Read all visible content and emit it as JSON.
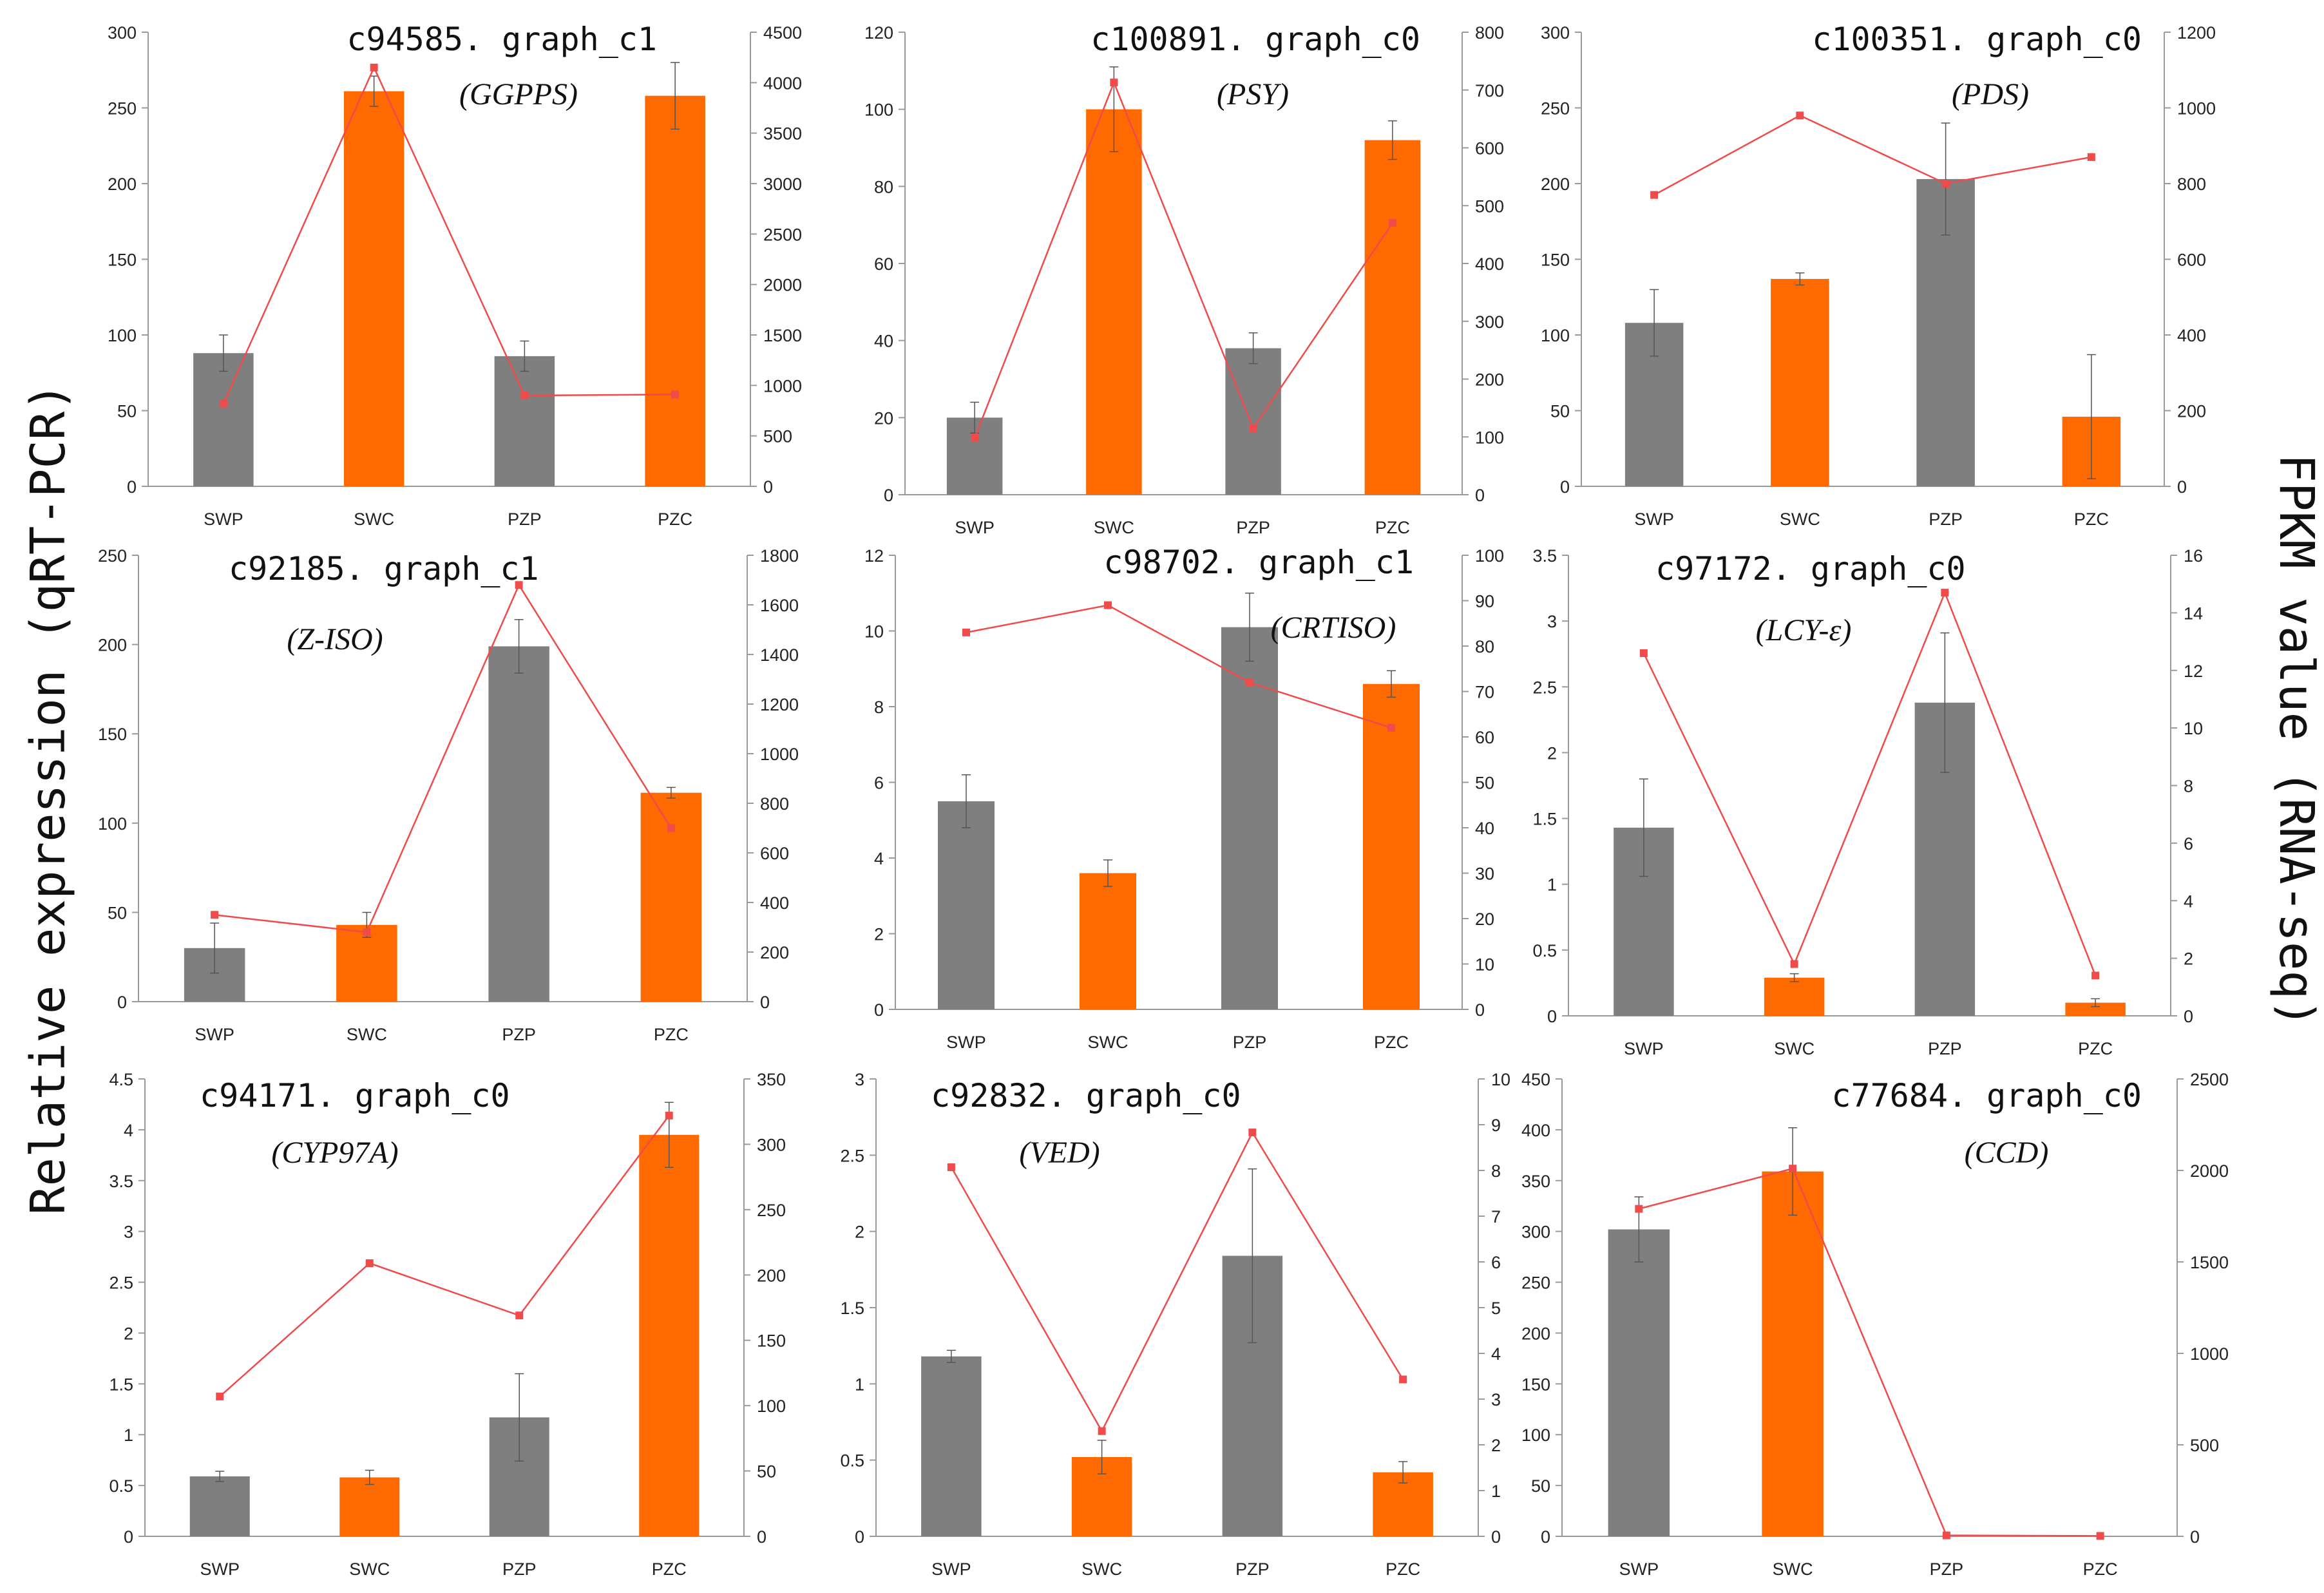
{
  "figure": {
    "left_axis_label": "Relative expression (qRT-PCR)",
    "right_axis_label": "FPKM value (RNA-seq)",
    "colors": {
      "gray": "#7f7f7f",
      "orange": "#ff6a00",
      "line": "#ef4b4b",
      "axis": "#9a9a9a"
    }
  },
  "chart_data": [
    {
      "type": "bar",
      "title": "c94585. graph_c1",
      "subtitle": "(GGPPS)",
      "categories": [
        "SWP",
        "SWC",
        "PZP",
        "PZC"
      ],
      "series": [
        {
          "name": "qRT-PCR",
          "axis": "left",
          "values": [
            88,
            261,
            86,
            258
          ],
          "errors": [
            12,
            10,
            10,
            22
          ]
        },
        {
          "name": "RNA-seq FPKM",
          "axis": "right",
          "type": "line",
          "values": [
            820,
            4150,
            900,
            910
          ]
        }
      ],
      "left_ylim": [
        0,
        300
      ],
      "left_ticks": [
        0,
        50,
        100,
        150,
        200,
        250,
        300
      ],
      "right_ylim": [
        0,
        4500
      ],
      "right_ticks": [
        0,
        500,
        1000,
        1500,
        2000,
        2500,
        3000,
        3500,
        4000,
        4500
      ]
    },
    {
      "type": "bar",
      "title": "c100891. graph_c0",
      "subtitle": "(PSY)",
      "categories": [
        "SWP",
        "SWC",
        "PZP",
        "PZC"
      ],
      "series": [
        {
          "name": "qRT-PCR",
          "axis": "left",
          "values": [
            20,
            100,
            38,
            92
          ],
          "errors": [
            4,
            11,
            4,
            5
          ]
        },
        {
          "name": "RNA-seq FPKM",
          "axis": "right",
          "type": "line",
          "values": [
            98,
            713,
            115,
            470
          ]
        }
      ],
      "left_ylim": [
        0,
        120
      ],
      "left_ticks": [
        0,
        20,
        40,
        60,
        80,
        100,
        120
      ],
      "right_ylim": [
        0,
        800
      ],
      "right_ticks": [
        0,
        100,
        200,
        300,
        400,
        500,
        600,
        700,
        800
      ]
    },
    {
      "type": "bar",
      "title": "c100351. graph_c0",
      "subtitle": "(PDS)",
      "categories": [
        "SWP",
        "SWC",
        "PZP",
        "PZC"
      ],
      "series": [
        {
          "name": "qRT-PCR",
          "axis": "left",
          "values": [
            108,
            137,
            203,
            46
          ],
          "errors": [
            22,
            4,
            37,
            41
          ]
        },
        {
          "name": "RNA-seq FPKM",
          "axis": "right",
          "type": "line",
          "values": [
            770,
            980,
            800,
            870
          ]
        }
      ],
      "left_ylim": [
        0,
        300
      ],
      "left_ticks": [
        0,
        50,
        100,
        150,
        200,
        250,
        300
      ],
      "right_ylim": [
        0,
        1200
      ],
      "right_ticks": [
        0,
        200,
        400,
        600,
        800,
        1000,
        1200
      ]
    },
    {
      "type": "bar",
      "title": "c92185. graph_c1",
      "subtitle": "(Z-ISO)",
      "categories": [
        "SWP",
        "SWC",
        "PZP",
        "PZC"
      ],
      "series": [
        {
          "name": "qRT-PCR",
          "axis": "left",
          "values": [
            30,
            43,
            199,
            117
          ],
          "errors": [
            14,
            7,
            15,
            3
          ]
        },
        {
          "name": "RNA-seq FPKM",
          "axis": "right",
          "type": "line",
          "values": [
            350,
            280,
            1680,
            700
          ]
        }
      ],
      "left_ylim": [
        0,
        250
      ],
      "left_ticks": [
        0,
        50,
        100,
        150,
        200,
        250
      ],
      "right_ylim": [
        0,
        1800
      ],
      "right_ticks": [
        0,
        200,
        400,
        600,
        800,
        1000,
        1200,
        1400,
        1600,
        1800
      ]
    },
    {
      "type": "bar",
      "title": "c98702. graph_c1",
      "subtitle": "(CRTISO)",
      "categories": [
        "SWP",
        "SWC",
        "PZP",
        "PZC"
      ],
      "series": [
        {
          "name": "qRT-PCR",
          "axis": "left",
          "values": [
            5.5,
            3.6,
            10.1,
            8.6
          ],
          "errors": [
            0.7,
            0.35,
            0.9,
            0.35
          ]
        },
        {
          "name": "RNA-seq FPKM",
          "axis": "right",
          "type": "line",
          "values": [
            83,
            89,
            72,
            62
          ]
        }
      ],
      "left_ylim": [
        0,
        12
      ],
      "left_ticks": [
        0,
        2,
        4,
        6,
        8,
        10,
        12
      ],
      "right_ylim": [
        0,
        100
      ],
      "right_ticks": [
        0,
        10,
        20,
        30,
        40,
        50,
        60,
        70,
        80,
        90,
        100
      ]
    },
    {
      "type": "bar",
      "title": "c97172. graph_c0",
      "subtitle": "(LCY-ε)",
      "categories": [
        "SWP",
        "SWC",
        "PZP",
        "PZC"
      ],
      "series": [
        {
          "name": "qRT-PCR",
          "axis": "left",
          "values": [
            1.43,
            0.29,
            2.38,
            0.1
          ],
          "errors": [
            0.37,
            0.03,
            0.53,
            0.03
          ]
        },
        {
          "name": "RNA-seq FPKM",
          "axis": "right",
          "type": "line",
          "values": [
            12.6,
            1.8,
            14.7,
            1.4
          ]
        }
      ],
      "left_ylim": [
        0,
        3.5
      ],
      "left_ticks": [
        0,
        0.5,
        1,
        1.5,
        2,
        2.5,
        3,
        3.5
      ],
      "right_ylim": [
        0,
        16
      ],
      "right_ticks": [
        0,
        2,
        4,
        6,
        8,
        10,
        12,
        14,
        16
      ]
    },
    {
      "type": "bar",
      "title": "c94171. graph_c0",
      "subtitle": "(CYP97A)",
      "categories": [
        "SWP",
        "SWC",
        "PZP",
        "PZC"
      ],
      "series": [
        {
          "name": "qRT-PCR",
          "axis": "left",
          "values": [
            0.59,
            0.58,
            1.17,
            3.95
          ],
          "errors": [
            0.05,
            0.07,
            0.43,
            0.32
          ]
        },
        {
          "name": "RNA-seq FPKM",
          "axis": "right",
          "type": "line",
          "values": [
            107,
            209,
            169,
            322
          ]
        }
      ],
      "left_ylim": [
        0,
        4.5
      ],
      "left_ticks": [
        0,
        0.5,
        1,
        1.5,
        2,
        2.5,
        3,
        3.5,
        4,
        4.5
      ],
      "right_ylim": [
        0,
        350
      ],
      "right_ticks": [
        0,
        50,
        100,
        150,
        200,
        250,
        300,
        350
      ]
    },
    {
      "type": "bar",
      "title": "c92832. graph_c0",
      "subtitle": "(VED)",
      "categories": [
        "SWP",
        "SWC",
        "PZP",
        "PZC"
      ],
      "series": [
        {
          "name": "qRT-PCR",
          "axis": "left",
          "values": [
            1.18,
            0.52,
            1.84,
            0.42
          ],
          "errors": [
            0.04,
            0.11,
            0.57,
            0.07
          ]
        },
        {
          "name": "RNA-seq FPKM",
          "axis": "right",
          "type": "line",
          "values": [
            8.07,
            2.3,
            8.83,
            3.43
          ]
        }
      ],
      "left_ylim": [
        0,
        3
      ],
      "left_ticks": [
        0,
        0.5,
        1,
        1.5,
        2,
        2.5,
        3
      ],
      "right_ylim": [
        0,
        10
      ],
      "right_ticks": [
        0,
        1,
        2,
        3,
        4,
        5,
        6,
        7,
        8,
        9,
        10
      ]
    },
    {
      "type": "bar",
      "title": "c77684. graph_c0",
      "subtitle": "(CCD)",
      "categories": [
        "SWP",
        "SWC",
        "PZP",
        "PZC"
      ],
      "series": [
        {
          "name": "qRT-PCR",
          "axis": "left",
          "values": [
            302,
            359,
            0,
            0
          ],
          "errors": [
            32,
            43,
            0,
            0
          ]
        },
        {
          "name": "RNA-seq FPKM",
          "axis": "right",
          "type": "line",
          "values": [
            1790,
            2010,
            5,
            2
          ]
        }
      ],
      "left_ylim": [
        0,
        450
      ],
      "left_ticks": [
        0,
        50,
        100,
        150,
        200,
        250,
        300,
        350,
        400,
        450
      ],
      "right_ylim": [
        0,
        2500
      ],
      "right_ticks": [
        0,
        500,
        1000,
        1500,
        2000,
        2500
      ]
    }
  ]
}
